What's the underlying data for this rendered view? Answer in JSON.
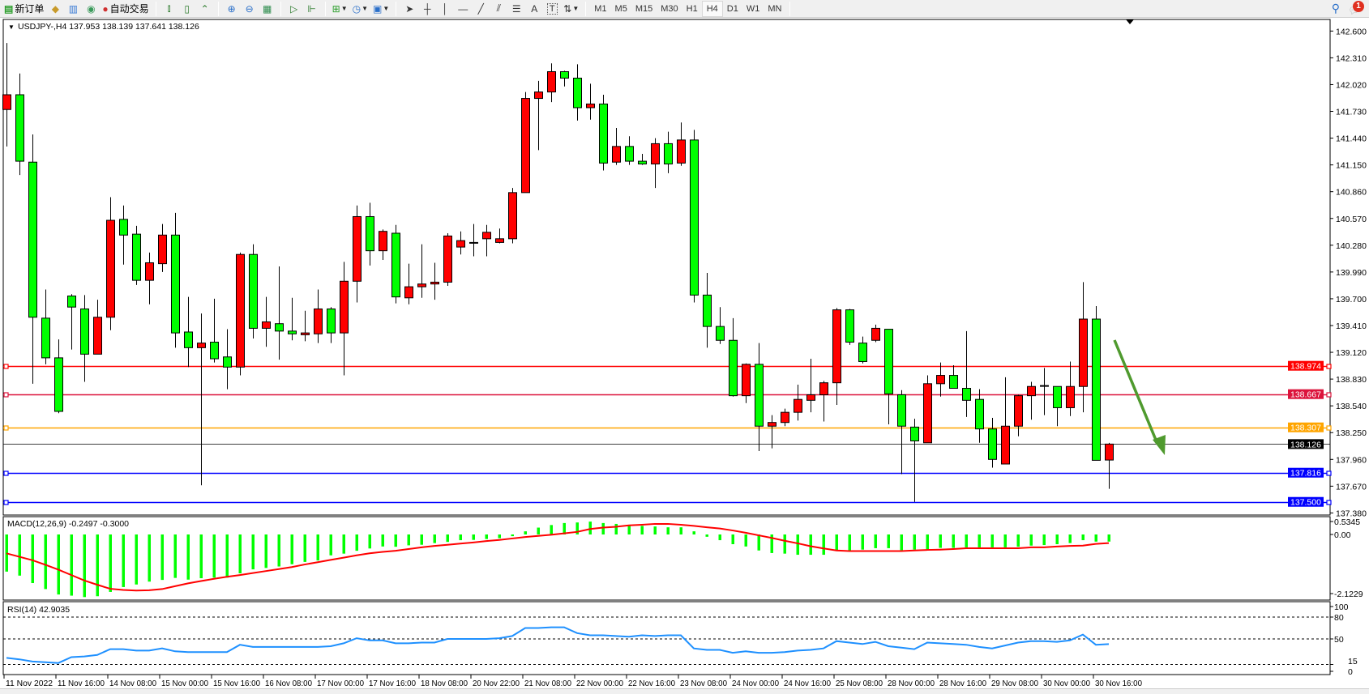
{
  "toolbar": {
    "new_order_label": "新订单",
    "auto_trade_label": "自动交易",
    "icons": [
      "new-order-icon",
      "gold-icon",
      "market-watch-icon",
      "signals-icon",
      "auto-trade-icon",
      "bar-chart-icon",
      "candlestick-icon",
      "line-chart-icon",
      "zoom-in-icon",
      "zoom-out-icon",
      "tile-windows-icon",
      "autoscroll-icon",
      "chart-shift-icon",
      "indicators-icon",
      "periods-icon",
      "templates-icon",
      "cursor-icon",
      "crosshair-icon",
      "vertical-line-icon",
      "horizontal-line-icon",
      "trendline-icon",
      "fibonacci-icon",
      "fibonacci-fan-icon",
      "text-icon",
      "text-label-icon",
      "arrows-icon"
    ],
    "text_tool_label": "A",
    "text_label_tool": "T",
    "periods": [
      "M1",
      "M5",
      "M15",
      "M30",
      "H1",
      "H4",
      "D1",
      "W1",
      "MN"
    ],
    "active_period": "H4",
    "notification_count": "1"
  },
  "chart": {
    "header": "USDJPY-,H4  137.953 138.139 137.641 138.126",
    "price_ticks": [
      "142.600",
      "142.310",
      "142.020",
      "141.730",
      "141.440",
      "141.150",
      "140.860",
      "140.570",
      "140.280",
      "139.990",
      "139.700",
      "139.410",
      "139.120",
      "138.830",
      "138.540",
      "138.250",
      "137.960",
      "137.670",
      "137.380"
    ],
    "hlines": [
      {
        "price": 138.974,
        "label": "138.974",
        "color": "#ff0000"
      },
      {
        "price": 138.667,
        "label": "138.667",
        "color": "#dc143c"
      },
      {
        "price": 138.307,
        "label": "138.307",
        "color": "#ffa500"
      },
      {
        "price": 137.816,
        "label": "137.816",
        "color": "#0000ff"
      },
      {
        "price": 137.5,
        "label": "137.500",
        "color": "#0000ff"
      }
    ],
    "bid": {
      "price": 138.126,
      "label": "138.126",
      "color": "#000000"
    },
    "arrow_color": "#4f9a2e",
    "up_color": "#ff0000",
    "down_color": "#00ff00",
    "time_labels": [
      "11 Nov 2022",
      "11 Nov 16:00",
      "14 Nov 08:00",
      "15 Nov 00:00",
      "15 Nov 16:00",
      "16 Nov 08:00",
      "17 Nov 00:00",
      "17 Nov 16:00",
      "18 Nov 08:00",
      "20 Nov 22:00",
      "21 Nov 08:00",
      "22 Nov 00:00",
      "22 Nov 16:00",
      "23 Nov 08:00",
      "24 Nov 00:00",
      "24 Nov 16:00",
      "25 Nov 08:00",
      "28 Nov 00:00",
      "28 Nov 16:00",
      "29 Nov 08:00",
      "30 Nov 00:00",
      "30 Nov 16:00"
    ]
  },
  "macd": {
    "header": "MACD(12,26,9) -0.2497 -0.3000",
    "ticks": [
      "0.5345",
      "0.00",
      "-2.1229"
    ],
    "hist_color": "#00ff00",
    "signal_color": "#ff0000"
  },
  "rsi": {
    "header": "RSI(14) 42.9035",
    "ticks": [
      "100",
      "80",
      "50",
      "15",
      "0"
    ],
    "line_color": "#1e90ff"
  },
  "chart_data": [
    {
      "type": "candlestick",
      "symbol": "USDJPY-",
      "timeframe": "H4",
      "ylim": [
        137.38,
        142.6
      ],
      "ohlc": [
        [
          141.75,
          142.47,
          141.35,
          141.91
        ],
        [
          141.91,
          142.14,
          141.04,
          141.19
        ],
        [
          141.18,
          141.48,
          138.78,
          139.5
        ],
        [
          139.49,
          139.8,
          138.99,
          139.06
        ],
        [
          139.06,
          139.26,
          138.46,
          138.48
        ],
        [
          139.73,
          139.75,
          139.15,
          139.61
        ],
        [
          139.59,
          139.74,
          138.8,
          139.1
        ],
        [
          139.1,
          139.69,
          139.1,
          139.5
        ],
        [
          139.5,
          140.8,
          139.36,
          140.55
        ],
        [
          140.56,
          140.71,
          140.07,
          140.39
        ],
        [
          140.4,
          140.49,
          139.85,
          139.9
        ],
        [
          139.9,
          140.2,
          139.64,
          140.09
        ],
        [
          140.08,
          140.51,
          139.99,
          140.39
        ],
        [
          140.39,
          140.63,
          139.17,
          139.33
        ],
        [
          139.34,
          139.72,
          138.96,
          139.17
        ],
        [
          139.17,
          139.54,
          137.68,
          139.22
        ],
        [
          139.23,
          139.7,
          139.01,
          139.05
        ],
        [
          139.07,
          139.37,
          138.72,
          138.96
        ],
        [
          138.96,
          140.2,
          138.87,
          140.18
        ],
        [
          140.18,
          140.29,
          139.27,
          139.38
        ],
        [
          139.38,
          139.72,
          139.18,
          139.45
        ],
        [
          139.43,
          140.05,
          139.04,
          139.35
        ],
        [
          139.35,
          139.71,
          139.25,
          139.32
        ],
        [
          139.31,
          139.57,
          139.24,
          139.33
        ],
        [
          139.32,
          139.8,
          139.22,
          139.59
        ],
        [
          139.59,
          139.61,
          139.22,
          139.33
        ],
        [
          139.33,
          140.1,
          138.87,
          139.89
        ],
        [
          139.89,
          140.71,
          139.66,
          140.59
        ],
        [
          140.59,
          140.74,
          140.06,
          140.22
        ],
        [
          140.22,
          140.45,
          140.12,
          140.43
        ],
        [
          140.41,
          140.5,
          139.65,
          139.72
        ],
        [
          139.71,
          140.08,
          139.64,
          139.83
        ],
        [
          139.83,
          140.29,
          139.71,
          139.86
        ],
        [
          139.86,
          140.09,
          139.69,
          139.88
        ],
        [
          139.88,
          140.41,
          139.84,
          140.38
        ],
        [
          140.26,
          140.43,
          140.18,
          140.33
        ],
        [
          140.31,
          140.51,
          140.16,
          140.31
        ],
        [
          140.35,
          140.5,
          140.16,
          140.42
        ],
        [
          140.31,
          140.46,
          140.3,
          140.35
        ],
        [
          140.35,
          140.9,
          140.3,
          140.85
        ],
        [
          140.85,
          141.94,
          140.85,
          141.87
        ],
        [
          141.87,
          142.06,
          141.31,
          141.94
        ],
        [
          141.94,
          142.25,
          141.83,
          142.16
        ],
        [
          142.16,
          142.17,
          142.0,
          142.09
        ],
        [
          142.09,
          142.24,
          141.63,
          141.77
        ],
        [
          141.77,
          142.03,
          141.64,
          141.81
        ],
        [
          141.81,
          141.91,
          141.09,
          141.17
        ],
        [
          141.18,
          141.55,
          141.15,
          141.35
        ],
        [
          141.35,
          141.46,
          141.15,
          141.19
        ],
        [
          141.19,
          141.27,
          141.15,
          141.16
        ],
        [
          141.16,
          141.44,
          140.9,
          141.38
        ],
        [
          141.38,
          141.51,
          141.06,
          141.16
        ],
        [
          141.17,
          141.61,
          141.14,
          141.42
        ],
        [
          141.42,
          141.53,
          139.66,
          139.74
        ],
        [
          139.74,
          139.98,
          139.17,
          139.4
        ],
        [
          139.4,
          139.61,
          139.21,
          139.25
        ],
        [
          139.25,
          139.49,
          138.64,
          138.65
        ],
        [
          138.65,
          139.0,
          138.57,
          138.99
        ],
        [
          138.99,
          139.22,
          138.05,
          138.32
        ],
        [
          138.32,
          138.44,
          138.08,
          138.36
        ],
        [
          138.36,
          138.51,
          138.32,
          138.47
        ],
        [
          138.47,
          138.77,
          138.38,
          138.61
        ],
        [
          138.6,
          139.05,
          138.47,
          138.66
        ],
        [
          138.66,
          138.81,
          138.37,
          138.79
        ],
        [
          138.79,
          139.6,
          138.55,
          139.58
        ],
        [
          139.58,
          139.59,
          139.2,
          139.23
        ],
        [
          139.22,
          139.29,
          139.0,
          139.02
        ],
        [
          139.25,
          139.42,
          139.23,
          139.38
        ],
        [
          139.37,
          139.37,
          138.34,
          138.67
        ],
        [
          138.66,
          138.71,
          137.8,
          138.32
        ],
        [
          138.31,
          138.4,
          137.5,
          138.16
        ],
        [
          138.14,
          138.87,
          138.14,
          138.78
        ],
        [
          138.78,
          139.01,
          138.64,
          138.87
        ],
        [
          138.87,
          138.98,
          138.73,
          138.73
        ],
        [
          138.73,
          139.35,
          138.42,
          138.6
        ],
        [
          138.61,
          138.72,
          138.14,
          138.29
        ],
        [
          138.29,
          138.41,
          137.87,
          137.96
        ],
        [
          137.91,
          138.85,
          137.91,
          138.32
        ],
        [
          138.32,
          138.66,
          138.21,
          138.65
        ],
        [
          138.65,
          138.8,
          138.39,
          138.75
        ],
        [
          138.76,
          138.95,
          138.44,
          138.76
        ],
        [
          138.75,
          138.75,
          138.32,
          138.52
        ],
        [
          138.52,
          139.02,
          138.43,
          138.75
        ],
        [
          138.75,
          139.88,
          138.47,
          139.48
        ],
        [
          139.48,
          139.62,
          137.95,
          137.95
        ],
        [
          137.953,
          138.139,
          137.641,
          138.126
        ]
      ]
    },
    {
      "type": "bar+line",
      "indicator": "MACD(12,26,9)",
      "ylim": [
        -2.1229,
        0.5345
      ],
      "histogram": [
        -1.3,
        -1.44,
        -1.7,
        -1.91,
        -2.1,
        -2.14,
        -2.19,
        -2.16,
        -2.01,
        -1.84,
        -1.75,
        -1.65,
        -1.59,
        -1.52,
        -1.58,
        -1.53,
        -1.51,
        -1.51,
        -1.36,
        -1.22,
        -1.17,
        -1.12,
        -1.04,
        -0.96,
        -0.91,
        -0.73,
        -0.67,
        -0.57,
        -0.49,
        -0.42,
        -0.43,
        -0.38,
        -0.36,
        -0.3,
        -0.26,
        -0.2,
        -0.19,
        -0.16,
        -0.13,
        -0.06,
        0.11,
        0.24,
        0.33,
        0.4,
        0.42,
        0.45,
        0.4,
        0.37,
        0.32,
        0.3,
        0.28,
        0.25,
        0.25,
        0.11,
        -0.08,
        -0.2,
        -0.34,
        -0.42,
        -0.56,
        -0.65,
        -0.67,
        -0.71,
        -0.71,
        -0.71,
        -0.56,
        -0.56,
        -0.53,
        -0.48,
        -0.48,
        -0.55,
        -0.53,
        -0.52,
        -0.47,
        -0.47,
        -0.45,
        -0.45,
        -0.45,
        -0.45,
        -0.43,
        -0.39,
        -0.37,
        -0.34,
        -0.3,
        -0.2,
        -0.25,
        -0.2497
      ],
      "signal": [
        -0.66,
        -0.78,
        -0.9,
        -1.06,
        -1.23,
        -1.42,
        -1.61,
        -1.76,
        -1.9,
        -1.94,
        -1.96,
        -1.95,
        -1.91,
        -1.81,
        -1.71,
        -1.63,
        -1.55,
        -1.48,
        -1.42,
        -1.35,
        -1.28,
        -1.21,
        -1.14,
        -1.05,
        -0.97,
        -0.89,
        -0.81,
        -0.73,
        -0.66,
        -0.61,
        -0.57,
        -0.51,
        -0.45,
        -0.4,
        -0.36,
        -0.32,
        -0.28,
        -0.23,
        -0.19,
        -0.14,
        -0.09,
        -0.05,
        -0.01,
        0.04,
        0.09,
        0.19,
        0.24,
        0.27,
        0.32,
        0.34,
        0.37,
        0.37,
        0.34,
        0.3,
        0.25,
        0.21,
        0.14,
        0.06,
        -0.03,
        -0.12,
        -0.22,
        -0.31,
        -0.41,
        -0.49,
        -0.56,
        -0.58,
        -0.58,
        -0.58,
        -0.58,
        -0.58,
        -0.56,
        -0.54,
        -0.53,
        -0.51,
        -0.48,
        -0.48,
        -0.48,
        -0.48,
        -0.48,
        -0.45,
        -0.45,
        -0.42,
        -0.4,
        -0.39,
        -0.33,
        -0.3
      ]
    },
    {
      "type": "line",
      "indicator": "RSI(14)",
      "ylim": [
        0,
        100
      ],
      "levels": [
        80,
        50,
        15
      ],
      "values": [
        24,
        22,
        19,
        18,
        17,
        25,
        26,
        28,
        36,
        36,
        34,
        34,
        37,
        33,
        32,
        32,
        32,
        32,
        42,
        39,
        39,
        39,
        39,
        39,
        39,
        40,
        44,
        51,
        48,
        48,
        44,
        44,
        45,
        45,
        50,
        50,
        50,
        50,
        51,
        54,
        65,
        65,
        66,
        66,
        58,
        55,
        55,
        54,
        53,
        55,
        54,
        55,
        55,
        37,
        35,
        35,
        31,
        33,
        31,
        31,
        32,
        34,
        35,
        37,
        47,
        45,
        43,
        46,
        40,
        38,
        36,
        45,
        44,
        43,
        42,
        39,
        37,
        41,
        45,
        47,
        47,
        46,
        48,
        56,
        42,
        42.9035
      ]
    }
  ]
}
